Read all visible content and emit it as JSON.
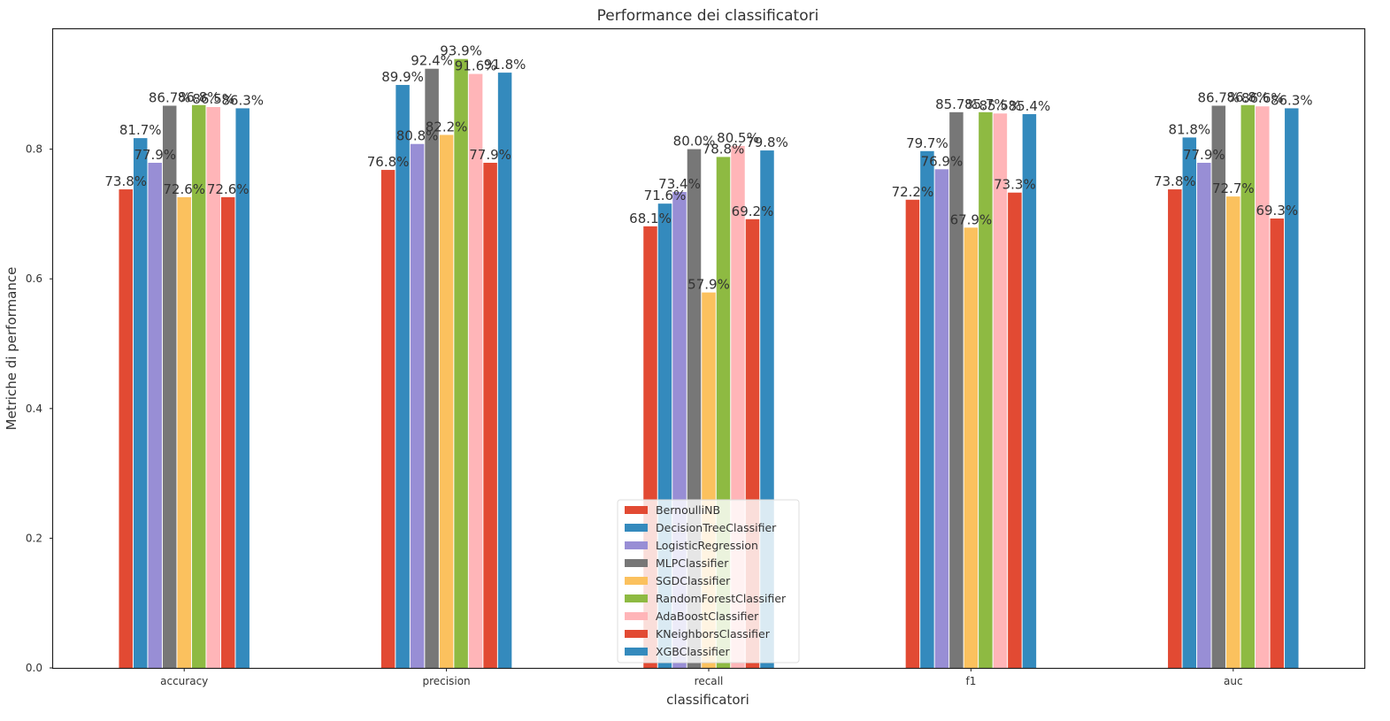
{
  "chart_data": {
    "type": "bar",
    "title": "Performance dei classificatori",
    "xlabel": "classificatori",
    "ylabel": "Metriche di performance",
    "categories": [
      "accuracy",
      "precision",
      "recall",
      "f1",
      "auc"
    ],
    "yticks": [
      "0.0",
      "0.2",
      "0.4",
      "0.6",
      "0.8"
    ],
    "ylim": [
      0,
      0.985
    ],
    "grid": false,
    "legend_position": "lower-center",
    "series": [
      {
        "name": "BernoulliNB",
        "color": "#e24a33",
        "values": [
          0.738,
          0.768,
          0.681,
          0.722,
          0.738
        ],
        "labels": [
          "73.8%",
          "76.8%",
          "68.1%",
          "72.2%",
          "73.8%"
        ]
      },
      {
        "name": "DecisionTreeClassifier",
        "color": "#348abd",
        "values": [
          0.817,
          0.899,
          0.716,
          0.797,
          0.818
        ],
        "labels": [
          "81.7%",
          "89.9%",
          "71.6%",
          "79.7%",
          "81.8%"
        ]
      },
      {
        "name": "LogisticRegression",
        "color": "#988ed5",
        "values": [
          0.779,
          0.808,
          0.734,
          0.769,
          0.779
        ],
        "labels": [
          "77.9%",
          "80.8%",
          "73.4%",
          "76.9%",
          "77.9%"
        ]
      },
      {
        "name": "MLPClassifier",
        "color": "#777777",
        "values": [
          0.867,
          0.924,
          0.8,
          0.857,
          0.867
        ],
        "labels": [
          "86.7%",
          "92.4%",
          "80.0%",
          "85.7%",
          "86.7%"
        ]
      },
      {
        "name": "SGDClassifier",
        "color": "#fbc15e",
        "values": [
          0.726,
          0.822,
          0.579,
          0.679,
          0.727
        ],
        "labels": [
          "72.6%",
          "82.2%",
          "57.9%",
          "67.9%",
          "72.7%"
        ]
      },
      {
        "name": "RandomForestClassifier",
        "color": "#8eba42",
        "values": [
          0.868,
          0.939,
          0.788,
          0.857,
          0.868
        ],
        "labels": [
          "86.8%",
          "93.9%",
          "78.8%",
          "85.7%",
          "86.8%"
        ]
      },
      {
        "name": "AdaBoostClassifier",
        "color": "#ffb5b8",
        "values": [
          0.865,
          0.916,
          0.805,
          0.855,
          0.866
        ],
        "labels": [
          "86.5%",
          "91.6%",
          "80.5%",
          "85.5%",
          "86.6%"
        ]
      },
      {
        "name": "KNeighborsClassifier",
        "color": "#e24a33",
        "values": [
          0.726,
          0.779,
          0.692,
          0.733,
          0.693
        ],
        "labels": [
          "72.6%",
          "77.9%",
          "69.2%",
          "73.3%",
          "69.3%"
        ]
      },
      {
        "name": "XGBClassifier",
        "color": "#348abd",
        "values": [
          0.863,
          0.918,
          0.798,
          0.854,
          0.863
        ],
        "labels": [
          "86.3%",
          "91.8%",
          "79.8%",
          "85.4%",
          "86.3%"
        ]
      }
    ]
  }
}
